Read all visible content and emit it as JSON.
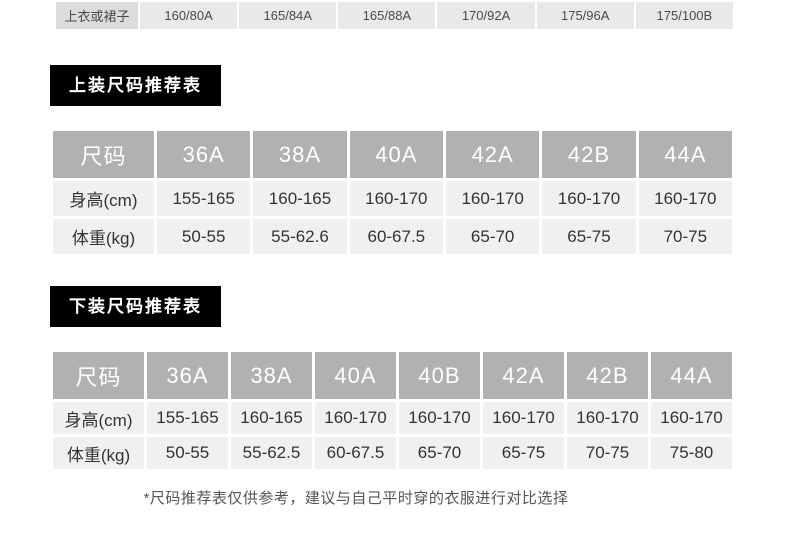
{
  "strip": {
    "rows": [
      {
        "label": "上衣或裙子",
        "values": [
          "160/80A",
          "165/84A",
          "165/88A",
          "170/92A",
          "175/96A",
          "175/100B"
        ]
      }
    ]
  },
  "upper": {
    "title": "上装尺码推荐表",
    "table": {
      "columns": [
        "尺码",
        "36A",
        "38A",
        "40A",
        "42A",
        "42B",
        "44A"
      ],
      "rows": [
        {
          "label": "身高(cm)",
          "values": [
            "155-165",
            "160-165",
            "160-170",
            "160-170",
            "160-170",
            "160-170"
          ]
        },
        {
          "label": "体重(kg)",
          "values": [
            "50-55",
            "55-62.6",
            "60-67.5",
            "65-70",
            "65-75",
            "70-75"
          ]
        }
      ]
    }
  },
  "lower": {
    "title": "下装尺码推荐表",
    "table": {
      "columns": [
        "尺码",
        "36A",
        "38A",
        "40A",
        "40B",
        "42A",
        "42B",
        "44A"
      ],
      "rows": [
        {
          "label": "身高(cm)",
          "values": [
            "155-165",
            "160-165",
            "160-170",
            "160-170",
            "160-170",
            "160-170",
            "160-170"
          ]
        },
        {
          "label": "体重(kg)",
          "values": [
            "50-55",
            "55-62.5",
            "60-67.5",
            "65-70",
            "65-75",
            "70-75",
            "75-80"
          ]
        }
      ]
    }
  },
  "footnote": "*尺码推荐表仅供参考，建议与自己平时穿的衣服进行对比选择",
  "colors": {
    "title_bg": "#000000",
    "title_text": "#ffffff",
    "header_bg": "#b1b1b1",
    "header_text": "#ffffff",
    "cell_bg": "#f0f0f0",
    "cell_text": "#333333",
    "strip_label_bg": "#dcdcdc",
    "strip_value_bg": "#e9e9e9"
  },
  "chart_data": [
    {
      "type": "table",
      "title": "",
      "columns": [
        "上衣或裙子",
        "160/80A",
        "165/84A",
        "165/88A",
        "170/92A",
        "175/96A",
        "175/100B"
      ],
      "rows": []
    },
    {
      "type": "table",
      "title": "上装尺码推荐表",
      "columns": [
        "尺码",
        "36A",
        "38A",
        "40A",
        "42A",
        "42B",
        "44A"
      ],
      "rows": [
        [
          "身高(cm)",
          "155-165",
          "160-165",
          "160-170",
          "160-170",
          "160-170",
          "160-170"
        ],
        [
          "体重(kg)",
          "50-55",
          "55-62.6",
          "60-67.5",
          "65-70",
          "65-75",
          "70-75"
        ]
      ]
    },
    {
      "type": "table",
      "title": "下装尺码推荐表",
      "columns": [
        "尺码",
        "36A",
        "38A",
        "40A",
        "40B",
        "42A",
        "42B",
        "44A"
      ],
      "rows": [
        [
          "身高(cm)",
          "155-165",
          "160-165",
          "160-170",
          "160-170",
          "160-170",
          "160-170",
          "160-170"
        ],
        [
          "体重(kg)",
          "50-55",
          "55-62.5",
          "60-67.5",
          "65-70",
          "65-75",
          "70-75",
          "75-80"
        ]
      ]
    }
  ]
}
